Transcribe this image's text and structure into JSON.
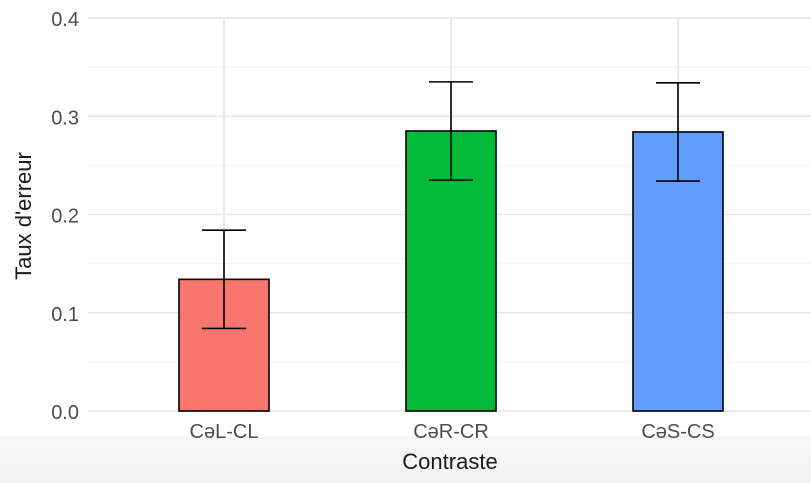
{
  "chart_data": {
    "type": "bar",
    "categories": [
      "CəL-CL",
      "CəR-CR",
      "CəS-CS"
    ],
    "values": [
      0.134,
      0.285,
      0.284
    ],
    "errors": [
      {
        "low": 0.084,
        "high": 0.184
      },
      {
        "low": 0.235,
        "high": 0.335
      },
      {
        "low": 0.234,
        "high": 0.334
      }
    ],
    "colors": [
      "#F8766D",
      "#00BA38",
      "#619CFF"
    ],
    "xlabel": "Contraste",
    "ylabel": "Taux d'erreur",
    "ylim": [
      0,
      0.4
    ],
    "yticks": [
      "0.0",
      "0.1",
      "0.2",
      "0.3",
      "0.4"
    ],
    "grid": true,
    "legend": "none"
  }
}
